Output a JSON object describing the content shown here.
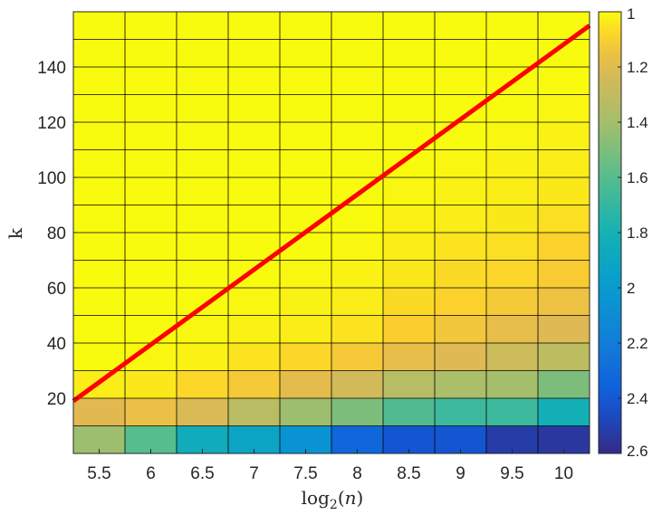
{
  "chart_data": {
    "type": "heatmap",
    "title": "",
    "xlabel": "log2(n)",
    "ylabel": "k",
    "x": [
      5.5,
      6,
      6.5,
      7,
      7.5,
      8,
      8.5,
      9,
      9.5,
      10
    ],
    "y_rows_bottom_to_top": [
      5,
      15,
      25,
      35,
      45,
      55,
      65,
      75,
      85,
      95,
      105,
      115,
      125,
      135,
      145,
      155
    ],
    "xlim": [
      5.25,
      10.25
    ],
    "ylim": [
      0,
      160
    ],
    "xticks": [
      "5.5",
      "6",
      "6.5",
      "7",
      "7.5",
      "8",
      "8.5",
      "9",
      "9.5",
      "10"
    ],
    "yticks": [
      20,
      40,
      60,
      80,
      100,
      120,
      140
    ],
    "colorbar": {
      "range": [
        1,
        2.6
      ],
      "reversed": true,
      "ticks": [
        "1",
        "1.2",
        "1.4",
        "1.6",
        "1.8",
        "2",
        "2.2",
        "2.4",
        "2.6"
      ],
      "colormap": "parula"
    },
    "values_bottom_to_top": [
      [
        1.42,
        1.6,
        1.85,
        1.92,
        2.05,
        2.33,
        2.42,
        2.42,
        2.52,
        2.54
      ],
      [
        1.19,
        1.16,
        1.22,
        1.33,
        1.42,
        1.5,
        1.62,
        1.68,
        1.68,
        1.82
      ],
      [
        1.03,
        1.04,
        1.08,
        1.12,
        1.18,
        1.25,
        1.34,
        1.38,
        1.4,
        1.5
      ],
      [
        1.0,
        1.01,
        1.02,
        1.05,
        1.08,
        1.12,
        1.17,
        1.2,
        1.27,
        1.32
      ],
      [
        1.0,
        1.0,
        1.01,
        1.02,
        1.03,
        1.05,
        1.1,
        1.13,
        1.17,
        1.2
      ],
      [
        1.0,
        1.0,
        1.0,
        1.01,
        1.02,
        1.03,
        1.07,
        1.09,
        1.12,
        1.15
      ],
      [
        1.0,
        1.0,
        1.0,
        1.0,
        1.01,
        1.02,
        1.04,
        1.07,
        1.08,
        1.11
      ],
      [
        1.0,
        1.0,
        1.0,
        1.0,
        1.0,
        1.01,
        1.03,
        1.05,
        1.06,
        1.09
      ],
      [
        1.0,
        1.0,
        1.0,
        1.0,
        1.0,
        1.0,
        1.02,
        1.03,
        1.04,
        1.06
      ],
      [
        1.0,
        1.0,
        1.0,
        1.0,
        1.0,
        1.0,
        1.01,
        1.02,
        1.03,
        1.04
      ],
      [
        1.0,
        1.0,
        1.0,
        1.0,
        1.0,
        1.0,
        1.0,
        1.01,
        1.02,
        1.03
      ],
      [
        1.0,
        1.0,
        1.0,
        1.0,
        1.0,
        1.0,
        1.0,
        1.0,
        1.01,
        1.02
      ],
      [
        1.0,
        1.0,
        1.0,
        1.0,
        1.0,
        1.0,
        1.0,
        1.0,
        1.0,
        1.01
      ],
      [
        1.0,
        1.0,
        1.0,
        1.0,
        1.0,
        1.0,
        1.0,
        1.0,
        1.0,
        1.0
      ],
      [
        1.0,
        1.0,
        1.0,
        1.0,
        1.0,
        1.0,
        1.0,
        1.0,
        1.0,
        1.0
      ],
      [
        1.0,
        1.0,
        1.0,
        1.0,
        1.0,
        1.0,
        1.0,
        1.0,
        1.0,
        1.0
      ]
    ],
    "overlay_line": {
      "color": "#ff0000",
      "points": [
        [
          5.25,
          19
        ],
        [
          10.25,
          155
        ]
      ]
    }
  }
}
